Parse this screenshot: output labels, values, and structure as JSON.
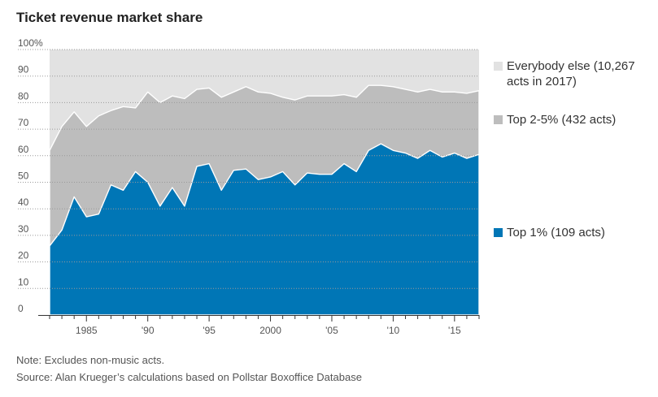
{
  "chart_data": {
    "type": "area",
    "stacked": true,
    "title": "Ticket revenue market share",
    "ylim": [
      0,
      100
    ],
    "xlim": [
      1982,
      2017
    ],
    "y_ticks": [
      0,
      10,
      20,
      30,
      40,
      50,
      60,
      70,
      80,
      90,
      100
    ],
    "y_tick_labels": [
      "0",
      "10",
      "20",
      "30",
      "40",
      "50",
      "60",
      "70",
      "80",
      "90",
      "100%"
    ],
    "x_ticks": [
      1985,
      1990,
      1995,
      2000,
      2005,
      2010,
      2015
    ],
    "x_tick_labels": [
      "1985",
      "'90",
      "'95",
      "2000",
      "'05",
      "'10",
      "'15"
    ],
    "x": [
      1982,
      1983,
      1984,
      1985,
      1986,
      1987,
      1988,
      1989,
      1990,
      1991,
      1992,
      1993,
      1994,
      1995,
      1996,
      1997,
      1998,
      1999,
      2000,
      2001,
      2002,
      2003,
      2004,
      2005,
      2006,
      2007,
      2008,
      2009,
      2010,
      2011,
      2012,
      2013,
      2014,
      2015,
      2016,
      2017
    ],
    "series": [
      {
        "name": "Top 1% (109 acts)",
        "color": "#0076b6",
        "values": [
          26,
          32,
          44.5,
          37,
          38,
          49,
          47,
          54,
          50,
          41,
          48,
          41,
          56,
          57,
          47,
          54.5,
          55,
          51,
          52,
          54,
          49,
          53.5,
          53,
          53,
          57,
          54,
          62,
          64.5,
          62,
          61,
          59,
          62,
          59.5,
          61,
          59,
          60.5
        ]
      },
      {
        "name": "Top 2-5% (432 acts)",
        "color": "#bdbdbd",
        "cumulative": [
          62,
          71,
          76.5,
          71,
          75,
          77,
          78.5,
          78,
          84,
          80,
          82.5,
          81.5,
          85,
          85.5,
          82,
          84,
          86,
          84,
          83.5,
          82,
          81,
          82.5,
          82.5,
          82.5,
          83,
          82,
          86.5,
          86.5,
          86,
          85,
          84,
          85,
          84,
          84,
          83.5,
          84.5
        ]
      },
      {
        "name": "Everybody else (10,267 acts in 2017)",
        "color": "#e2e2e2",
        "cumulative": [
          100,
          100,
          100,
          100,
          100,
          100,
          100,
          100,
          100,
          100,
          100,
          100,
          100,
          100,
          100,
          100,
          100,
          100,
          100,
          100,
          100,
          100,
          100,
          100,
          100,
          100,
          100,
          100,
          100,
          100,
          100,
          100,
          100,
          100,
          100,
          100
        ]
      }
    ],
    "legend": [
      "Everybody else (10,267 acts in 2017)",
      "Top 2-5% (432 acts)",
      "Top 1% (109 acts)"
    ],
    "notes": {
      "note": "Note: Excludes non-music acts.",
      "source": "Source: Alan Krueger’s calculations based on Pollstar Boxoffice Database"
    }
  }
}
